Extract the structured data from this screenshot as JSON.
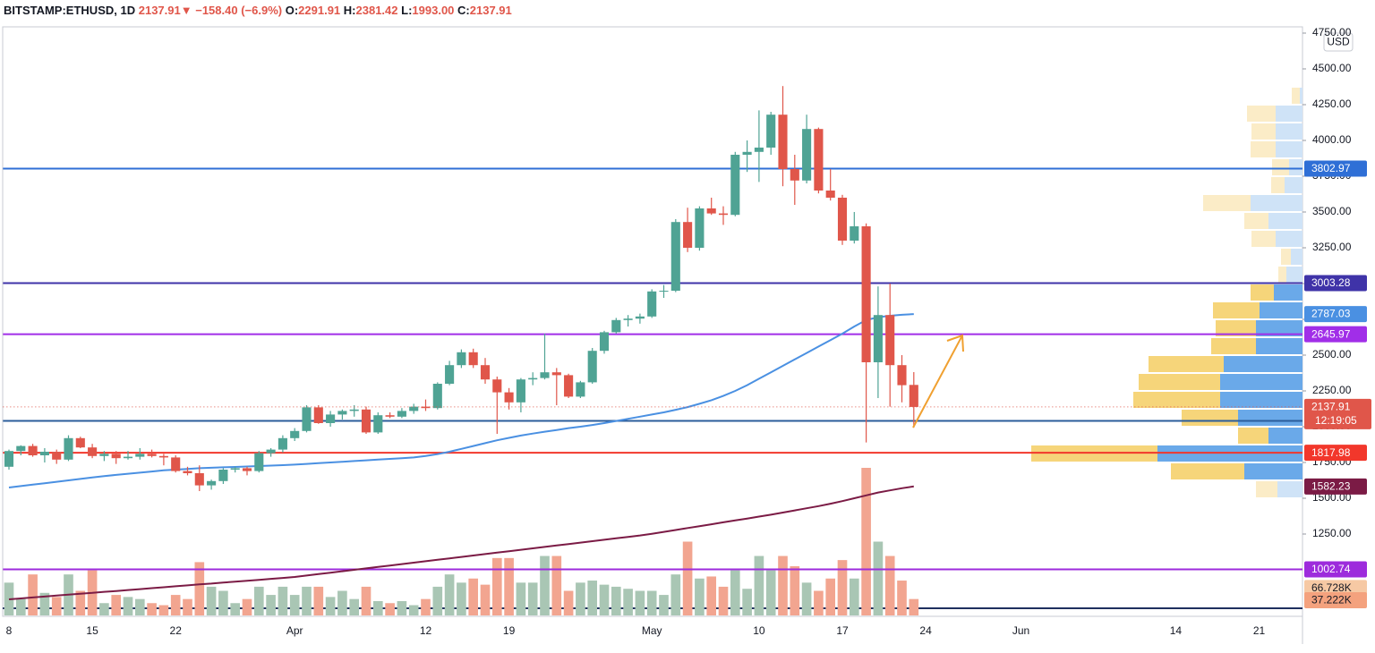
{
  "header": {
    "symbol": "BITSTAMP:ETHUSD, 1D",
    "price": "2137.91",
    "arrow": "▼",
    "change": "−158.40 (−6.9%)",
    "o_label": "O:",
    "o": "2291.91",
    "h_label": "H:",
    "h": "2381.42",
    "l_label": "L:",
    "l": "1993.00",
    "c_label": "C:",
    "c": "2137.91"
  },
  "chart_data": {
    "type": "candlestick",
    "currency": "USD",
    "countdown": "12:19:05",
    "categories": [
      "8",
      null,
      null,
      null,
      null,
      null,
      null,
      "15",
      null,
      null,
      null,
      null,
      null,
      null,
      "22",
      null,
      null,
      null,
      null,
      null,
      null,
      null,
      null,
      null,
      "Apr",
      null,
      null,
      null,
      null,
      null,
      null,
      null,
      null,
      null,
      null,
      "12",
      null,
      null,
      null,
      null,
      null,
      null,
      "19",
      null,
      null,
      null,
      null,
      null,
      null,
      null,
      null,
      null,
      null,
      null,
      "May",
      null,
      null,
      null,
      null,
      null,
      null,
      null,
      null,
      "10",
      null,
      null,
      null,
      null,
      null,
      null,
      "17",
      null,
      null,
      null,
      null,
      null,
      null,
      "24",
      null,
      null,
      null,
      null,
      null,
      null,
      null,
      "Jun",
      null,
      null,
      null,
      null,
      null,
      null,
      null,
      null,
      null,
      null,
      null,
      null,
      "14",
      null,
      null,
      null,
      null,
      null,
      null,
      "21",
      null,
      null,
      null
    ],
    "open": [
      1720,
      1830,
      1865,
      1800,
      1825,
      1770,
      1920,
      1855,
      1795,
      1810,
      1780,
      1790,
      1810,
      1795,
      1785,
      1690,
      1675,
      1590,
      1620,
      1700,
      1710,
      1690,
      1815,
      1840,
      1920,
      1970,
      2135,
      2025,
      2085,
      2110,
      2120,
      1960,
      2080,
      2070,
      2110,
      2140,
      2130,
      2300,
      2430,
      2520,
      2430,
      2330,
      2240,
      2170,
      2330,
      2340,
      2380,
      2360,
      2210,
      2310,
      2530,
      2660,
      2745,
      2755,
      2770,
      2945,
      2950,
      3430,
      3250,
      3525,
      3490,
      3480,
      3900,
      3920,
      3950,
      4180,
      3800,
      3720,
      4080,
      3650,
      3600,
      3300,
      3400,
      2450,
      2780,
      2430,
      2291.91,
      null,
      null,
      null,
      null,
      null,
      null,
      null,
      null,
      null,
      null,
      null,
      null,
      null,
      null,
      null,
      null,
      null,
      null,
      null,
      null,
      null,
      null,
      null,
      null,
      null,
      null,
      null,
      null,
      null,
      null,
      null,
      null
    ],
    "high": [
      1840,
      1870,
      1880,
      1850,
      1840,
      1940,
      1930,
      1880,
      1830,
      1830,
      1830,
      1850,
      1840,
      1810,
      1800,
      1720,
      1730,
      1630,
      1710,
      1720,
      1720,
      1830,
      1850,
      1940,
      1990,
      2150,
      2150,
      2110,
      2120,
      2150,
      2140,
      2100,
      2100,
      2130,
      2160,
      2190,
      2310,
      2460,
      2540,
      2545,
      2480,
      2350,
      2270,
      2340,
      2380,
      2650,
      2410,
      2370,
      2320,
      2550,
      2670,
      2760,
      2780,
      2790,
      2960,
      2990,
      3450,
      3530,
      3540,
      3600,
      3540,
      3920,
      4000,
      4210,
      4200,
      4380,
      3900,
      4180,
      4090,
      3800,
      3620,
      3500,
      3420,
      2980,
      3000,
      2500,
      2381.42,
      null,
      null,
      null,
      null,
      null,
      null,
      null,
      null,
      null,
      null,
      null,
      null,
      null,
      null,
      null,
      null,
      null,
      null,
      null,
      null,
      null,
      null,
      null,
      null,
      null,
      null,
      null,
      null,
      null,
      null,
      null,
      null
    ],
    "low": [
      1700,
      1800,
      1790,
      1750,
      1740,
      1760,
      1850,
      1780,
      1760,
      1740,
      1770,
      1770,
      1785,
      1730,
      1680,
      1660,
      1550,
      1560,
      1600,
      1680,
      1660,
      1680,
      1790,
      1820,
      1900,
      1960,
      2020,
      2000,
      2050,
      2070,
      1950,
      1950,
      2060,
      2060,
      2090,
      2110,
      2120,
      2290,
      2410,
      2410,
      2300,
      1950,
      2120,
      2100,
      2290,
      2330,
      2150,
      2200,
      2200,
      2300,
      2510,
      2650,
      2700,
      2720,
      2760,
      2900,
      2940,
      3220,
      3230,
      3480,
      3410,
      3470,
      3780,
      3710,
      3900,
      3680,
      3550,
      3700,
      3630,
      3580,
      3270,
      3280,
      1890,
      2200,
      2140,
      2170,
      1993,
      null,
      null,
      null,
      null,
      null,
      null,
      null,
      null,
      null,
      null,
      null,
      null,
      null,
      null,
      null,
      null,
      null,
      null,
      null,
      null,
      null,
      null,
      null,
      null,
      null,
      null,
      null,
      null,
      null,
      null,
      null,
      null
    ],
    "close": [
      1830,
      1865,
      1800,
      1825,
      1770,
      1920,
      1855,
      1795,
      1810,
      1780,
      1790,
      1810,
      1795,
      1785,
      1690,
      1675,
      1590,
      1620,
      1700,
      1710,
      1690,
      1815,
      1840,
      1920,
      1970,
      2135,
      2025,
      2085,
      2110,
      2120,
      1960,
      2080,
      2070,
      2110,
      2140,
      2130,
      2300,
      2430,
      2520,
      2430,
      2330,
      2240,
      2170,
      2330,
      2340,
      2380,
      2360,
      2210,
      2310,
      2530,
      2660,
      2745,
      2755,
      2770,
      2945,
      2950,
      3430,
      3250,
      3525,
      3490,
      3480,
      3900,
      3920,
      3950,
      4180,
      3800,
      3720,
      4080,
      3650,
      3600,
      3300,
      3400,
      2450,
      2780,
      2430,
      2290,
      2137.91,
      null,
      null,
      null,
      null,
      null,
      null,
      null,
      null,
      null,
      null,
      null,
      null,
      null,
      null,
      null,
      null,
      null,
      null,
      null,
      null,
      null,
      null,
      null,
      null,
      null,
      null,
      null,
      null,
      null,
      null,
      null,
      null
    ],
    "volume": [
      80000,
      40000,
      100000,
      55000,
      45000,
      100000,
      60000,
      110000,
      30000,
      50000,
      45000,
      40000,
      30000,
      25000,
      50000,
      40000,
      130000,
      70000,
      60000,
      30000,
      40000,
      70000,
      50000,
      70000,
      50000,
      70000,
      70000,
      45000,
      60000,
      40000,
      70000,
      35000,
      30000,
      35000,
      25000,
      40000,
      70000,
      100000,
      80000,
      90000,
      75000,
      140000,
      140000,
      80000,
      80000,
      145000,
      145000,
      60000,
      80000,
      85000,
      75000,
      70000,
      65000,
      60000,
      60000,
      50000,
      100000,
      180000,
      90000,
      95000,
      70000,
      110000,
      65000,
      145000,
      110000,
      145000,
      120000,
      80000,
      60000,
      90000,
      135000,
      90000,
      360000,
      180000,
      145000,
      85000,
      40000,
      null,
      null,
      null,
      null,
      null,
      null,
      null,
      null,
      null,
      null,
      null,
      null,
      null,
      null,
      null,
      null,
      null,
      null,
      null,
      null,
      null,
      null,
      null,
      null,
      null,
      null,
      null,
      null,
      null,
      null,
      null,
      null
    ],
    "up_color": "#4fa394",
    "down_color": "#e0564a",
    "volume_up_color": "#a9c6b4",
    "volume_down_color": "#f2a590",
    "moving_averages": [
      {
        "color": "#4a90e2",
        "values": [
          1575,
          1585,
          1595,
          1605,
          1615,
          1625,
          1635,
          1645,
          1655,
          1663,
          1671,
          1679,
          1687,
          1695,
          1700,
          1705,
          1710,
          1713,
          1716,
          1719,
          1722,
          1725,
          1728,
          1731,
          1735,
          1740,
          1745,
          1750,
          1755,
          1760,
          1765,
          1770,
          1775,
          1780,
          1785,
          1795,
          1808,
          1825,
          1845,
          1865,
          1885,
          1905,
          1922,
          1938,
          1952,
          1965,
          1977,
          1990,
          2000,
          2012,
          2025,
          2040,
          2055,
          2070,
          2085,
          2100,
          2118,
          2137,
          2160,
          2185,
          2215,
          2250,
          2290,
          2335,
          2380,
          2425,
          2470,
          2515,
          2560,
          2605,
          2650,
          2700,
          2745,
          2765,
          2775,
          2782,
          2787.03,
          null,
          null,
          null,
          null,
          null,
          null,
          null,
          null,
          null,
          null,
          null,
          null,
          null,
          null,
          null,
          null,
          null,
          null,
          null,
          null,
          null,
          null,
          null,
          null,
          null,
          null,
          null,
          null,
          null,
          null,
          null,
          null
        ]
      },
      {
        "color": "#7b1b45",
        "values": [
          794,
          800,
          807,
          813,
          820,
          826,
          833,
          839,
          846,
          852,
          859,
          865,
          872,
          878,
          885,
          891,
          898,
          904,
          911,
          917,
          924,
          930,
          937,
          943,
          950,
          960,
          970,
          980,
          990,
          1000,
          1010,
          1020,
          1030,
          1040,
          1050,
          1060,
          1070,
          1080,
          1090,
          1100,
          1110,
          1120,
          1130,
          1140,
          1150,
          1160,
          1170,
          1180,
          1190,
          1200,
          1210,
          1220,
          1230,
          1240,
          1252,
          1265,
          1278,
          1292,
          1305,
          1318,
          1332,
          1345,
          1358,
          1372,
          1385,
          1400,
          1415,
          1430,
          1445,
          1462,
          1480,
          1500,
          1520,
          1540,
          1555,
          1570,
          1582.23,
          null,
          null,
          null,
          null,
          null,
          null,
          null,
          null,
          null,
          null,
          null,
          null,
          null,
          null,
          null,
          null,
          null,
          null,
          null,
          null,
          null,
          null,
          null,
          null,
          null,
          null,
          null,
          null,
          null,
          null,
          null,
          null
        ]
      }
    ],
    "ylim": [
      681.25,
      4793.75
    ],
    "yticks": [
      {
        "value": 1250,
        "label": "1250.00"
      },
      {
        "value": 1500,
        "label": "1500.00"
      },
      {
        "value": 1750,
        "label": "1750.00"
      },
      {
        "value": 2000,
        "label": "2000.00"
      },
      {
        "value": 2250,
        "label": "2250.00"
      },
      {
        "value": 2500,
        "label": "2500.00"
      },
      {
        "value": 2750,
        "label": "2750.00"
      },
      {
        "value": 3000,
        "label": "3000.00"
      },
      {
        "value": 3250,
        "label": "3250.00"
      },
      {
        "value": 3500,
        "label": "3500.00"
      },
      {
        "value": 3750,
        "label": "3750.00"
      },
      {
        "value": 4000,
        "label": "4000.00"
      },
      {
        "value": 4250,
        "label": "4250.00"
      },
      {
        "value": 4500,
        "label": "4500.00"
      },
      {
        "value": 4750,
        "label": "4750.00"
      }
    ],
    "vlim": [
      0,
      360000
    ],
    "volume_tags": [
      {
        "value": 66728,
        "label": "66.728K",
        "color": "#f6c9a4"
      },
      {
        "value": 37222,
        "label": "37.222K",
        "color": "#f4a27e"
      }
    ],
    "levels": [
      {
        "value": 3802.97,
        "color": "#2f6fd6"
      },
      {
        "value": 3003.28,
        "color": "#3f33a8"
      },
      {
        "value": 2645.97,
        "color": "#a12ee8"
      },
      {
        "value": 2040.62,
        "color": "#2b5d9b"
      },
      {
        "value": 1817.98,
        "color": "#f2372b"
      },
      {
        "value": 1002.74,
        "color": "#9d2bdc"
      }
    ],
    "volume_profile": {
      "bins": [
        1500,
        1625,
        1750,
        1875,
        2000,
        2125,
        2250,
        2375,
        2500,
        2625,
        2750,
        2875,
        3000,
        3125,
        3250,
        3375,
        3500,
        3625,
        3750,
        3875,
        4000,
        4125,
        4250,
        4375
      ],
      "down": [
        24,
        82,
        141,
        34,
        63,
        97,
        91,
        84,
        50,
        45,
        52,
        26,
        9,
        11,
        27,
        27,
        53,
        15,
        19,
        28,
        27,
        32,
        9
      ],
      "up": [
        28,
        65,
        162,
        38,
        72,
        92,
        92,
        88,
        52,
        52,
        48,
        32,
        18,
        13,
        30,
        38,
        58,
        20,
        15,
        30,
        30,
        30,
        3
      ],
      "value_area": [
        1625,
        3000
      ],
      "down_color": "#f6d57a",
      "up_color": "#6aa9e9",
      "down_light": "#fbecc7",
      "up_light": "#cfe3f7"
    }
  }
}
